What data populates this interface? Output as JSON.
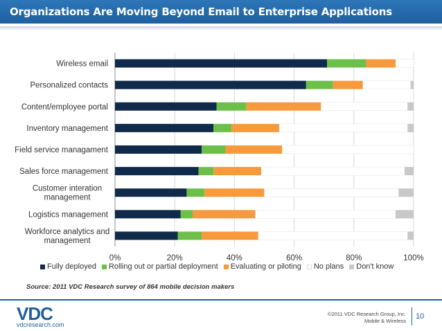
{
  "header": {
    "title": "Organizations Are Moving Beyond Email to Enterprise Applications"
  },
  "source": "Source: 2011 VDC Research survey of 864 mobile decision makers",
  "footer": {
    "logo_text": "VDC",
    "logo_url": "vdcresearch.com",
    "copyright_line1": "©2011 VDC Research Group, Inc.",
    "copyright_line2": "Mobile & Wireless",
    "page_number": "10"
  },
  "chart_data": {
    "type": "bar",
    "orientation": "horizontal",
    "stacked": "percent",
    "categories": [
      [
        "Wireless email"
      ],
      [
        "Personalized contacts"
      ],
      [
        "Content/employee portal"
      ],
      [
        "Inventory management"
      ],
      [
        "Field service managament"
      ],
      [
        "Sales force management"
      ],
      [
        "Customer interation",
        "management"
      ],
      [
        "Logistics management"
      ],
      [
        "Workforce analytics and",
        "management"
      ]
    ],
    "series": [
      {
        "name": "Fully deployed",
        "color": "#0f2a4a",
        "values": [
          71,
          64,
          34,
          33,
          29,
          28,
          24,
          22,
          21
        ]
      },
      {
        "name": "Rolling out or partial deployment",
        "color": "#6cc04a",
        "values": [
          13,
          9,
          10,
          6,
          8,
          5,
          6,
          4,
          8
        ]
      },
      {
        "name": "Evaluating or piloting",
        "color": "#f79a3b",
        "values": [
          10,
          10,
          25,
          16,
          19,
          16,
          20,
          21,
          19
        ]
      },
      {
        "name": "No plans",
        "color": "#ffffff",
        "values": [
          6,
          16,
          29,
          43,
          44,
          48,
          45,
          47,
          50
        ]
      },
      {
        "name": "Don't know",
        "color": "#c8c8c8",
        "values": [
          0,
          1,
          2,
          2,
          0,
          3,
          5,
          6,
          2
        ]
      }
    ],
    "xlim": [
      0,
      100
    ],
    "xticks": [
      "0%",
      "20%",
      "40%",
      "60%",
      "80%",
      "100%"
    ],
    "grid": true,
    "legend_position": "bottom"
  }
}
